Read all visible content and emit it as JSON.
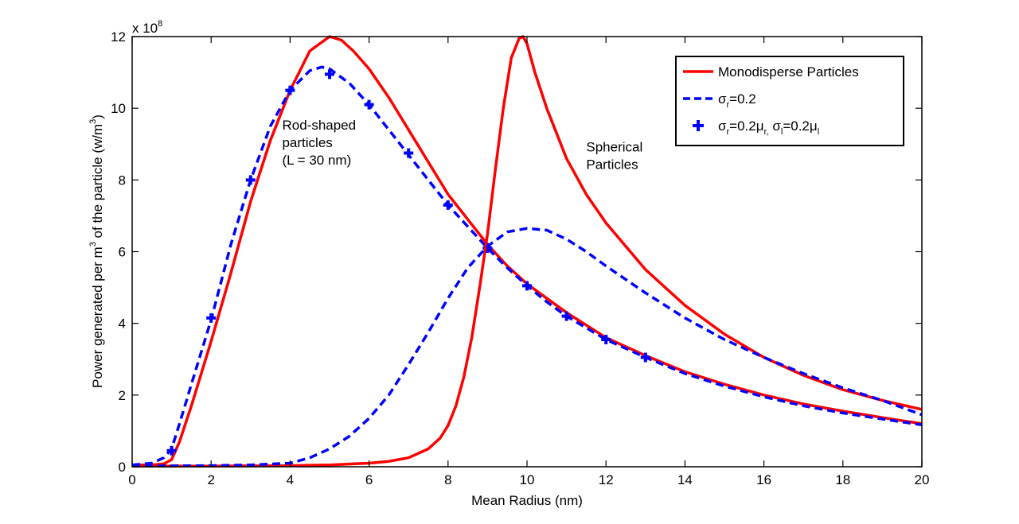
{
  "chart_data": {
    "type": "line",
    "title": "",
    "xlabel": "Mean Radius (nm)",
    "ylabel_parts": {
      "prefix": "Power generated per m",
      "superscript": "3",
      "middle": " of the particle (w/m",
      "superscript2": "3",
      "suffix": ")"
    },
    "y_scale_label": {
      "base": "x 10",
      "exponent": "8"
    },
    "xlim": [
      0,
      20
    ],
    "ylim": [
      0,
      12
    ],
    "xticks": [
      0,
      2,
      4,
      6,
      8,
      10,
      12,
      14,
      16,
      18,
      20
    ],
    "yticks": [
      0,
      2,
      4,
      6,
      8,
      10,
      12
    ],
    "y_units_multiplier": 100000000,
    "series": [
      {
        "name": "Rod-shaped monodisperse",
        "legend_key": "mono",
        "color": "#ff0000",
        "style": "solid",
        "x": [
          0,
          0.5,
          0.8,
          1.0,
          1.2,
          1.5,
          2.0,
          2.5,
          3.0,
          3.5,
          4.0,
          4.5,
          5.0,
          5.3,
          5.6,
          6.0,
          6.5,
          7.0,
          7.5,
          8.0,
          8.5,
          9.0,
          9.5,
          10.0,
          10.5,
          11.0,
          12.0,
          13.0,
          14.0,
          15.0,
          16.0,
          17.0,
          18.0,
          19.0,
          20.0
        ],
        "y": [
          0.05,
          0.05,
          0.08,
          0.2,
          0.7,
          1.7,
          3.5,
          5.4,
          7.4,
          9.1,
          10.5,
          11.6,
          12.0,
          11.9,
          11.6,
          11.1,
          10.3,
          9.4,
          8.5,
          7.6,
          6.9,
          6.2,
          5.6,
          5.1,
          4.7,
          4.3,
          3.6,
          3.1,
          2.65,
          2.3,
          2.0,
          1.75,
          1.55,
          1.37,
          1.2
        ]
      },
      {
        "name": "Rod-shaped σr=0.2",
        "legend_key": "sigma",
        "color": "#0000ff",
        "style": "dashed",
        "x": [
          0,
          0.5,
          0.8,
          1.0,
          1.2,
          1.5,
          2.0,
          2.5,
          3.0,
          3.5,
          4.0,
          4.5,
          4.8,
          5.0,
          5.5,
          6.0,
          6.5,
          7.0,
          7.5,
          8.0,
          8.5,
          9.0,
          9.5,
          10.0,
          10.5,
          11.0,
          12.0,
          13.0,
          14.0,
          15.0,
          16.0,
          17.0,
          18.0,
          19.0,
          20.0
        ],
        "y": [
          0.05,
          0.1,
          0.25,
          0.5,
          1.2,
          2.3,
          4.1,
          6.2,
          8.0,
          9.5,
          10.5,
          11.05,
          11.15,
          11.1,
          10.7,
          10.1,
          9.4,
          8.7,
          8.0,
          7.3,
          6.7,
          6.1,
          5.55,
          5.05,
          4.6,
          4.2,
          3.55,
          3.05,
          2.6,
          2.25,
          1.95,
          1.7,
          1.5,
          1.33,
          1.17
        ]
      },
      {
        "name": "Rod-shaped σr=0.2μr σl=0.2μl",
        "legend_key": "cross",
        "color": "#0000ff",
        "style": "markers",
        "x": [
          1,
          2,
          3,
          4,
          5,
          6,
          7,
          8,
          9,
          10,
          11,
          12,
          13
        ],
        "y": [
          0.45,
          4.15,
          8.0,
          10.5,
          10.95,
          10.1,
          8.75,
          7.3,
          6.1,
          5.05,
          4.2,
          3.55,
          3.05
        ]
      },
      {
        "name": "Spherical monodisperse",
        "legend_key": "mono",
        "color": "#ff0000",
        "style": "solid",
        "x": [
          0,
          2,
          4,
          5,
          6,
          6.5,
          7,
          7.5,
          7.8,
          8.0,
          8.2,
          8.4,
          8.6,
          8.8,
          9.0,
          9.2,
          9.4,
          9.6,
          9.8,
          9.9,
          10.0,
          10.2,
          10.5,
          11.0,
          11.5,
          12.0,
          13.0,
          14.0,
          15.0,
          16.0,
          17.0,
          18.0,
          19.0,
          20.0
        ],
        "y": [
          0.02,
          0.02,
          0.03,
          0.05,
          0.1,
          0.15,
          0.25,
          0.5,
          0.8,
          1.15,
          1.7,
          2.5,
          3.6,
          5.0,
          6.5,
          8.3,
          10.0,
          11.4,
          11.95,
          12.0,
          11.8,
          11.0,
          10.0,
          8.6,
          7.6,
          6.8,
          5.5,
          4.5,
          3.7,
          3.05,
          2.55,
          2.15,
          1.85,
          1.6
        ]
      },
      {
        "name": "Spherical σr=0.2",
        "legend_key": "sigma",
        "color": "#0000ff",
        "style": "dashed",
        "x": [
          0,
          2,
          3,
          4,
          4.5,
          5,
          5.5,
          6,
          6.5,
          7,
          7.5,
          8,
          8.5,
          9,
          9.5,
          10,
          10.5,
          11,
          11.5,
          12,
          13,
          14,
          15,
          16,
          17,
          18,
          19,
          20
        ],
        "y": [
          0.02,
          0.03,
          0.05,
          0.1,
          0.25,
          0.5,
          0.85,
          1.35,
          2.0,
          2.85,
          3.75,
          4.7,
          5.55,
          6.15,
          6.55,
          6.65,
          6.6,
          6.35,
          6.0,
          5.6,
          4.85,
          4.15,
          3.55,
          3.05,
          2.6,
          2.2,
          1.85,
          1.45
        ]
      }
    ],
    "legend": {
      "position": "top-right",
      "entries": [
        {
          "key": "mono",
          "label": "Monodisperse Particles"
        },
        {
          "key": "sigma",
          "sigma": "σ",
          "sub": "r",
          "rest": "=0.2"
        },
        {
          "key": "cross",
          "sigma": "σ",
          "sub": "r",
          "rest": "=0.2μ",
          "sub2": "r,",
          "mid": " σ",
          "sub3": "l",
          "rest2": "=0.2μ",
          "sub4": "l"
        }
      ]
    },
    "annotations": [
      {
        "lines": [
          "Rod-shaped",
          "particles",
          "(L = 30 nm)"
        ],
        "x": 3.8,
        "y": 9.4
      },
      {
        "lines": [
          "Spherical",
          "Particles"
        ],
        "x": 11.5,
        "y": 8.8
      }
    ],
    "grid": false
  }
}
